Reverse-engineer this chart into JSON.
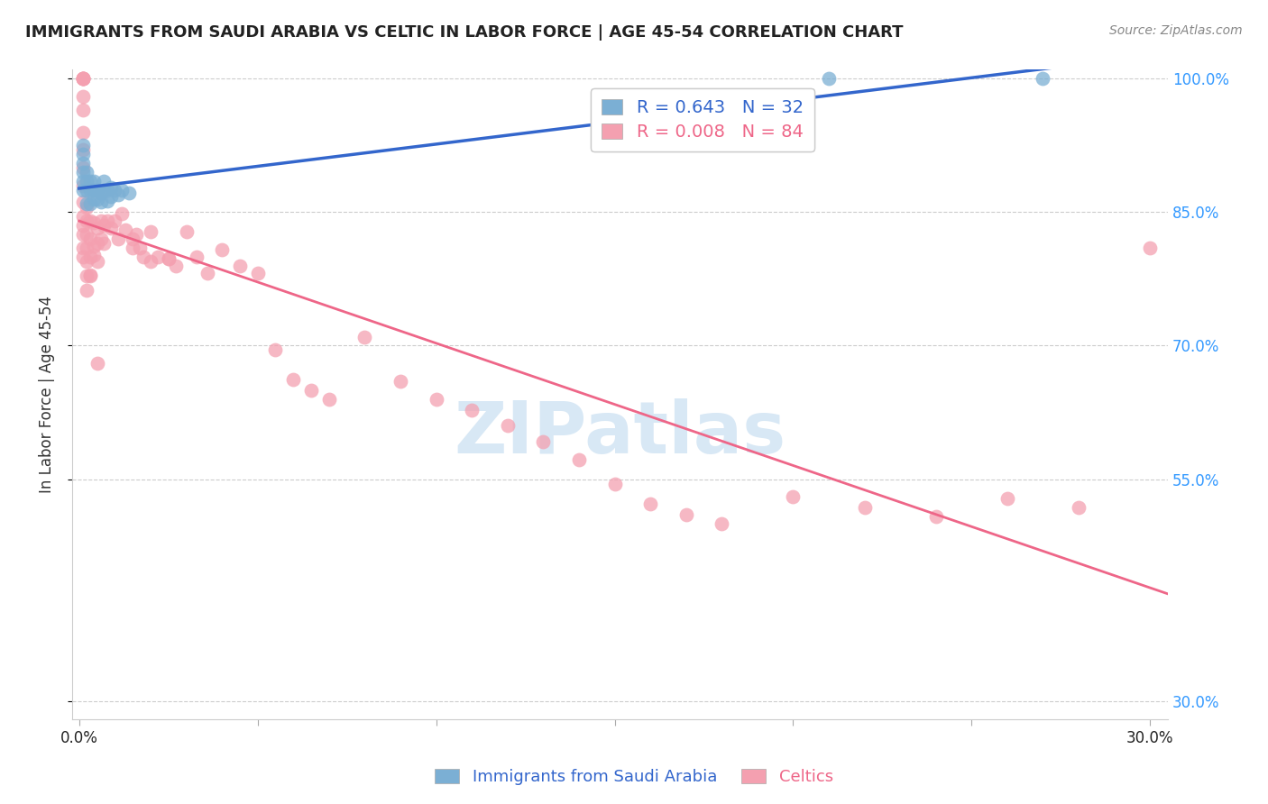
{
  "title": "IMMIGRANTS FROM SAUDI ARABIA VS CELTIC IN LABOR FORCE | AGE 45-54 CORRELATION CHART",
  "source": "Source: ZipAtlas.com",
  "ylabel": "In Labor Force | Age 45-54",
  "ylabel_ticks": [
    "100.0%",
    "85.0%",
    "70.0%",
    "55.0%",
    "30.0%"
  ],
  "ymin": 0.28,
  "ymax": 1.01,
  "xmin": -0.002,
  "xmax": 0.305,
  "legend_blue_r": "0.643",
  "legend_blue_n": "32",
  "legend_pink_r": "0.008",
  "legend_pink_n": "84",
  "blue_color": "#7BAFD4",
  "pink_color": "#F4A0B0",
  "trend_blue": "#3366CC",
  "trend_pink": "#EE6688",
  "title_color": "#222222",
  "source_color": "#888888",
  "axis_label_color": "#333333",
  "tick_color_y": "#3399FF",
  "grid_color": "#CCCCCC",
  "watermark_text": "ZIPatlas",
  "watermark_color": "#D8E8F5",
  "legend_bottom_blue": "Immigrants from Saudi Arabia",
  "legend_bottom_pink": "Celtics",
  "blue_points_x": [
    0.001,
    0.001,
    0.001,
    0.001,
    0.001,
    0.001,
    0.002,
    0.002,
    0.002,
    0.002,
    0.003,
    0.003,
    0.003,
    0.004,
    0.004,
    0.004,
    0.005,
    0.005,
    0.006,
    0.006,
    0.007,
    0.007,
    0.008,
    0.008,
    0.009,
    0.009,
    0.01,
    0.011,
    0.012,
    0.014,
    0.21,
    0.27
  ],
  "blue_points_y": [
    0.875,
    0.885,
    0.895,
    0.905,
    0.915,
    0.925,
    0.86,
    0.875,
    0.885,
    0.895,
    0.86,
    0.875,
    0.885,
    0.865,
    0.875,
    0.885,
    0.865,
    0.875,
    0.862,
    0.872,
    0.875,
    0.885,
    0.863,
    0.875,
    0.868,
    0.878,
    0.875,
    0.87,
    0.875,
    0.872,
    1.0,
    1.0
  ],
  "pink_points_x": [
    0.001,
    0.001,
    0.001,
    0.001,
    0.001,
    0.001,
    0.001,
    0.001,
    0.001,
    0.001,
    0.001,
    0.001,
    0.001,
    0.001,
    0.002,
    0.002,
    0.002,
    0.002,
    0.002,
    0.002,
    0.003,
    0.003,
    0.003,
    0.003,
    0.004,
    0.004,
    0.005,
    0.005,
    0.005,
    0.006,
    0.006,
    0.007,
    0.007,
    0.008,
    0.009,
    0.01,
    0.011,
    0.012,
    0.013,
    0.015,
    0.016,
    0.017,
    0.018,
    0.02,
    0.022,
    0.025,
    0.027,
    0.03,
    0.033,
    0.036,
    0.04,
    0.045,
    0.05,
    0.055,
    0.06,
    0.065,
    0.07,
    0.08,
    0.09,
    0.1,
    0.11,
    0.12,
    0.13,
    0.14,
    0.15,
    0.16,
    0.17,
    0.18,
    0.2,
    0.22,
    0.24,
    0.26,
    0.28,
    0.001,
    0.001,
    0.001,
    0.002,
    0.003,
    0.004,
    0.005,
    0.015,
    0.02,
    0.025,
    0.3
  ],
  "pink_points_y": [
    1.0,
    1.0,
    1.0,
    1.0,
    1.0,
    0.98,
    0.965,
    0.94,
    0.92,
    0.9,
    0.88,
    0.862,
    0.845,
    0.835,
    0.855,
    0.84,
    0.825,
    0.81,
    0.795,
    0.778,
    0.84,
    0.82,
    0.8,
    0.778,
    0.838,
    0.812,
    0.832,
    0.815,
    0.795,
    0.84,
    0.82,
    0.835,
    0.815,
    0.84,
    0.832,
    0.84,
    0.82,
    0.848,
    0.83,
    0.82,
    0.825,
    0.81,
    0.8,
    0.828,
    0.8,
    0.798,
    0.79,
    0.828,
    0.8,
    0.782,
    0.808,
    0.79,
    0.782,
    0.695,
    0.662,
    0.65,
    0.64,
    0.71,
    0.66,
    0.64,
    0.628,
    0.61,
    0.592,
    0.572,
    0.545,
    0.522,
    0.51,
    0.5,
    0.53,
    0.518,
    0.508,
    0.528,
    0.518,
    0.825,
    0.81,
    0.8,
    0.762,
    0.78,
    0.802,
    0.68,
    0.81,
    0.795,
    0.798,
    0.81
  ]
}
